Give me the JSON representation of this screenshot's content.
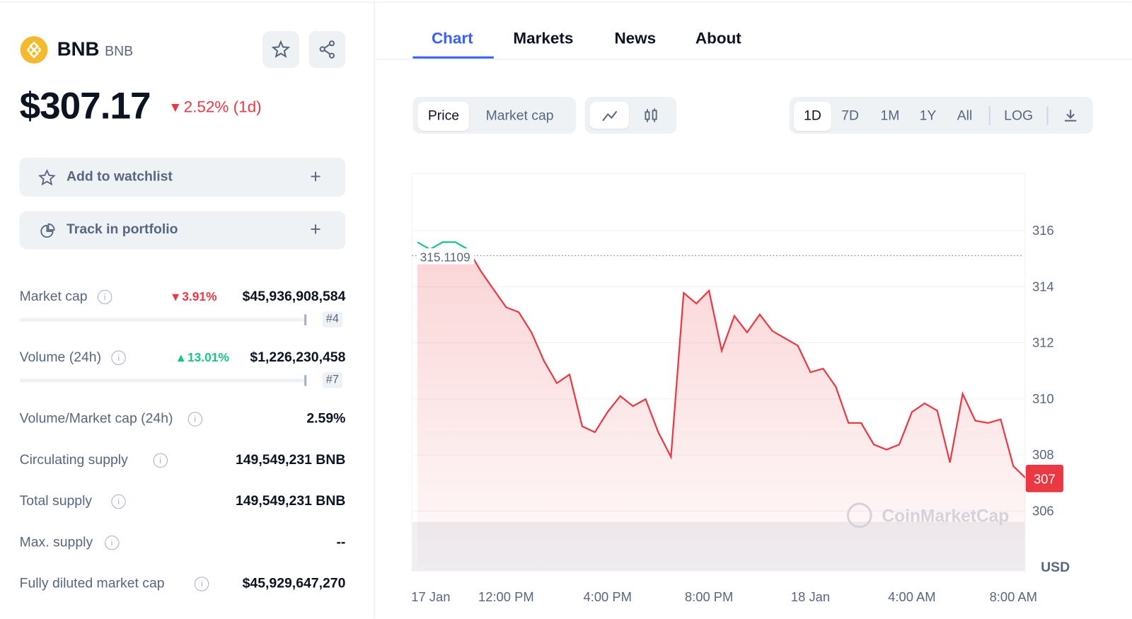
{
  "coin": {
    "name": "BNB",
    "symbol": "BNB",
    "price": "$307.17",
    "change": "2.52% (1d)",
    "direction": "down"
  },
  "actions": [
    "Add to watchlist",
    "Track in portfolio"
  ],
  "stats": [
    {
      "label": "Market cap",
      "change": "3.91%",
      "direction": "down",
      "value": "$45,936,908,584",
      "rank": "#4"
    },
    {
      "label": "Volume (24h)",
      "change": "13.01%",
      "direction": "up",
      "value": "$1,226,230,458",
      "rank": "#7"
    },
    {
      "label": "Volume/Market cap (24h)",
      "value": "2.59%"
    },
    {
      "label": "Circulating supply",
      "value": "149,549,231 BNB"
    },
    {
      "label": "Total supply",
      "value": "149,549,231 BNB"
    },
    {
      "label": "Max. supply",
      "value": "--"
    },
    {
      "label": "Fully diluted market cap",
      "value": "$45,929,647,270"
    }
  ],
  "tabs": [
    "Chart",
    "Markets",
    "News",
    "About"
  ],
  "toggles": [
    "Price",
    "Market cap"
  ],
  "ranges": [
    "1D",
    "7D",
    "1M",
    "1Y",
    "All",
    "LOG"
  ],
  "chart_data": {
    "type": "line",
    "currency": "USD",
    "watermark": "CoinMarketCap",
    "x": [
      8.5,
      9,
      9.5,
      10,
      10.5,
      11,
      11.5,
      12,
      12.5,
      13,
      13.5,
      14,
      14.5,
      15,
      15.5,
      16,
      16.5,
      17,
      17.5,
      18,
      18.5,
      19,
      19.5,
      20,
      20.5,
      21,
      21.5,
      22,
      22.5,
      23,
      23.5,
      24,
      24.5,
      25,
      25.5,
      26,
      26.5,
      27,
      27.5,
      28,
      28.5,
      29,
      29.5,
      30,
      30.5,
      31,
      31.5,
      32,
      32.5
    ],
    "values": [
      315.59,
      315.33,
      315.59,
      315.59,
      315.33,
      314.56,
      313.91,
      313.27,
      313.09,
      312.37,
      311.34,
      310.56,
      310.87,
      309.02,
      308.81,
      309.53,
      310.1,
      309.74,
      309.99,
      308.81,
      307.93,
      313.78,
      313.4,
      313.86,
      311.72,
      312.96,
      312.37,
      313.01,
      312.42,
      312.16,
      311.9,
      310.95,
      311.08,
      310.43,
      309.14,
      309.14,
      308.37,
      308.19,
      308.37,
      309.53,
      309.84,
      309.58,
      307.73,
      310.18,
      309.22,
      309.14,
      309.27,
      307.6,
      307.16
    ],
    "color": "#ea3943",
    "up_color": "#16c784",
    "reference": 315.1109,
    "current_label": {
      "value": 307.16,
      "label": "307"
    },
    "xlim": [
      8.29,
      32.46
    ],
    "xticks": [
      {
        "value": 9,
        "label": "17 Jan"
      },
      {
        "value": 12,
        "label": "12:00 PM"
      },
      {
        "value": 16,
        "label": "4:00 PM"
      },
      {
        "value": 20,
        "label": "8:00 PM"
      },
      {
        "value": 24,
        "label": "18 Jan"
      },
      {
        "value": 28,
        "label": "4:00 AM"
      },
      {
        "value": 32,
        "label": "8:00 AM"
      }
    ],
    "ylim": [
      303.86,
      318.04
    ],
    "yticks": [
      306,
      308,
      310,
      312,
      314,
      316
    ],
    "grid": true
  }
}
